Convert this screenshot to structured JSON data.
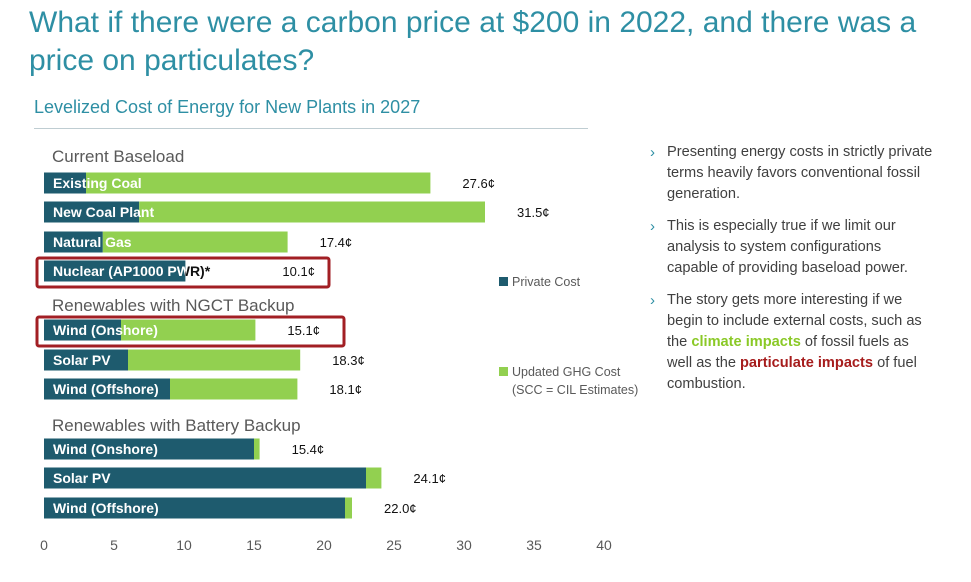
{
  "slide": {
    "title": "What if there were a carbon price at $200 in 2022, and there was a price on particulates?",
    "bullets": [
      {
        "parts": [
          {
            "text": "Presenting energy costs in strictly private terms heavily favors conventional fossil generation.",
            "style": "normal"
          }
        ]
      },
      {
        "parts": [
          {
            "text": "This is especially true if we limit our analysis to system configurations capable of providing baseload power.",
            "style": "normal"
          }
        ]
      },
      {
        "parts": [
          {
            "text": "The story gets more interesting if we begin to include external costs, such as the ",
            "style": "normal"
          },
          {
            "text": "climate impacts",
            "style": "green"
          },
          {
            "text": " of fossil fuels as well as the ",
            "style": "normal"
          },
          {
            "text": "particulate impacts",
            "style": "red"
          },
          {
            "text": " of fuel combustion.",
            "style": "normal"
          }
        ]
      }
    ]
  },
  "chart_data": {
    "type": "bar",
    "orientation": "horizontal",
    "stacked": true,
    "title": "Levelized Cost of Energy for New Plants in 2027",
    "xlim": [
      0,
      40
    ],
    "xticks": [
      0,
      5,
      10,
      15,
      20,
      25,
      30,
      35,
      40
    ],
    "grid": false,
    "legend_position": "right",
    "groups": [
      {
        "name": "Current Baseload",
        "categories": [
          "Existing Coal",
          "New Coal Plant",
          "Natural Gas",
          "Nuclear (AP1000 PWR)*"
        ]
      },
      {
        "name": "Renewables with NGCT Backup",
        "categories": [
          "Wind (Onshore)",
          "Solar PV",
          "Wind (Offshore)"
        ]
      },
      {
        "name": "Renewables with Battery Backup",
        "categories": [
          "Wind (Onshore)",
          "Solar PV",
          "Wind (Offshore)"
        ]
      }
    ],
    "series": [
      {
        "name": "Private Cost",
        "color": "#1e5b6e",
        "values": [
          3,
          6.8,
          4.2,
          10.1,
          5.5,
          6,
          9,
          15,
          23,
          21.5
        ]
      },
      {
        "name": "Updated GHG Cost (SCC = CIL Estimates)",
        "color": "#92d050",
        "values": [
          24.6,
          24.7,
          13.2,
          0,
          9.6,
          12.3,
          9.1,
          0.4,
          1.1,
          0.5
        ]
      }
    ],
    "totals": [
      "27.6¢",
      "31.5¢",
      "17.4¢",
      "10.1¢",
      "15.1¢",
      "18.3¢",
      "18.1¢",
      "15.4¢",
      "24.1¢",
      "22.0¢"
    ],
    "highlighted": [
      3,
      4
    ],
    "highlight_color": "#a21f24"
  }
}
